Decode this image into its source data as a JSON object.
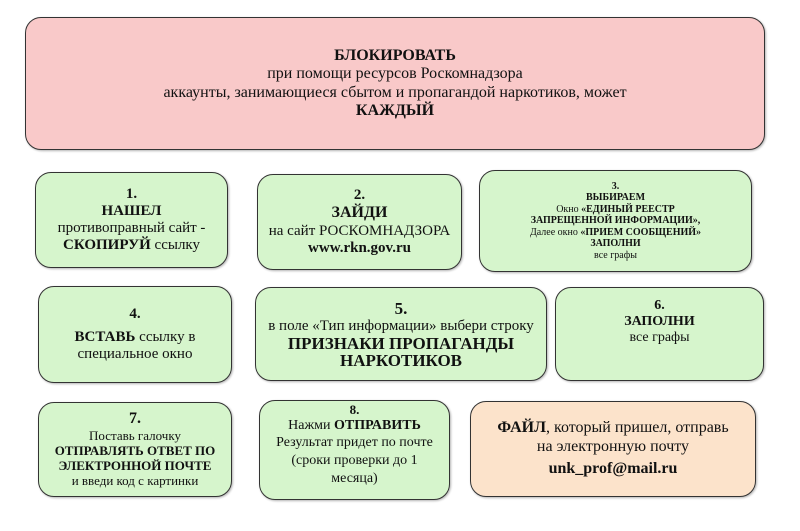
{
  "header": {
    "title": "БЛОКИРОВАТЬ",
    "line1": "при помощи ресурсов Роскомнадзора",
    "line2": "аккаунты, занимающиеся сбытом и пропагандой наркотиков, может",
    "emph": "КАЖДЫЙ"
  },
  "steps": [
    {
      "num": "1.",
      "a": "НАШЕЛ",
      "b": "противоправный сайт -",
      "c": "СКОПИРУЙ",
      "d": " ссылку"
    },
    {
      "num": "2.",
      "a": "ЗАЙДИ",
      "b": "на сайт РОСКОМНАДЗОРА",
      "c": "www.rkn.gov.ru"
    },
    {
      "num": "3.",
      "a": "ВЫБИРАЕМ",
      "b": "Окно ",
      "c": "«ЕДИНЫЙ РЕЕСТР ЗАПРЕЩЕННОЙ ИНФОРМАЦИИ»,",
      "d": "Далее окно ",
      "e": "«ПРИЕМ СООБЩЕНИЙ»",
      "f": "ЗАПОЛНИ",
      "g": "все графы"
    },
    {
      "num": "4.",
      "a": "ВСТАВЬ",
      "b": " ссылку в специальное окно"
    },
    {
      "num": "5.",
      "a": "в поле «Тип информации» выбери строку",
      "b": "ПРИЗНАКИ ПРОПАГАНДЫ НАРКОТИКОВ"
    },
    {
      "num": "6.",
      "a": "ЗАПОЛНИ",
      "b": "все графы"
    },
    {
      "num": "7.",
      "a": "Поставь галочку",
      "b": "ОТПРАВЛЯТЬ ОТВЕТ ПО ЭЛЕКТРОННОЙ ПОЧТЕ",
      "c": "и введи код с картинки"
    },
    {
      "num": "8.",
      "a": "Нажми ",
      "b": "ОТПРАВИТЬ",
      "c": "Результат придет по почте (сроки проверки до 1 месяца)"
    }
  ],
  "file": {
    "a": "ФАЙЛ",
    "b": ", который пришел, отправь на электронную почту",
    "email": "unk_prof@mail.ru"
  },
  "colors": {
    "header": "#f9c9c9",
    "step": "#d6f5cc",
    "file": "#fce3cb"
  }
}
